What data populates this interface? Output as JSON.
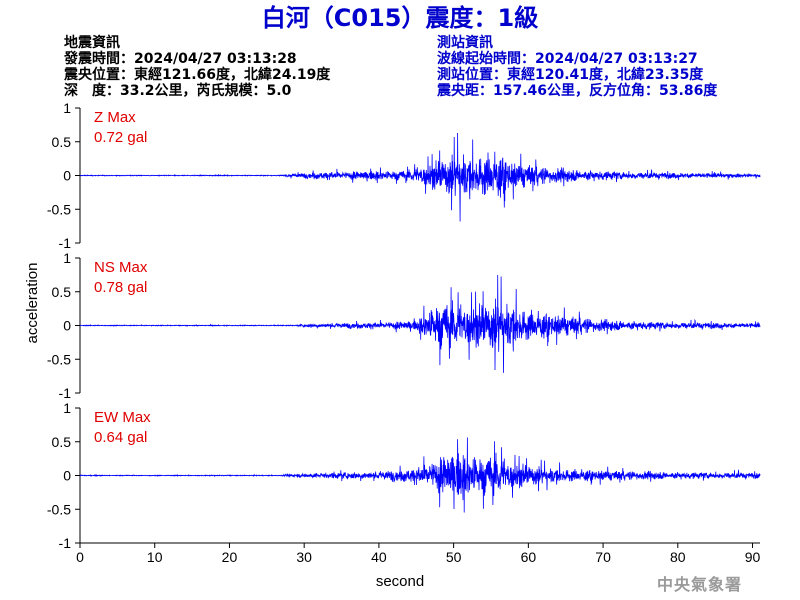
{
  "title": "白河（C015）震度：1級",
  "event_info": {
    "heading": "地震資訊",
    "origin_time": "發震時間：2024/04/27 03:13:28",
    "epicenter": "震央位置：東經121.66度，北緯24.19度",
    "depth_magnitude": "深　度：33.2公里，芮氏規模：5.0"
  },
  "station_info": {
    "heading": "測站資訊",
    "wave_start": "波線起始時間：2024/04/27 03:13:27",
    "station_location": "測站位置：東經120.41度，北緯23.35度",
    "distance_azimuth": "震央距：157.46公里，反方位角：53.86度"
  },
  "agency": "中央氣象署",
  "colors": {
    "title": "#0000cc",
    "trace": "#0000ff",
    "max_label": "#e00000",
    "station_info": "#0000cc"
  },
  "chart_data": {
    "type": "line",
    "xlabel": "second",
    "ylabel": "acceleration",
    "xlim": [
      0,
      91
    ],
    "xticks": [
      "0",
      "10",
      "20",
      "30",
      "40",
      "50",
      "60",
      "70",
      "80",
      "90"
    ],
    "ylim": [
      -1,
      1
    ],
    "yticks": [
      "-1",
      "-0.5",
      "0",
      "0.5",
      "1"
    ],
    "grid": false,
    "series": [
      {
        "name": "Z Max",
        "max": "0.72 gal",
        "peak": 0.72,
        "onset": 27.5,
        "envelope": [
          [
            0,
            0.01
          ],
          [
            27,
            0.01
          ],
          [
            28,
            0.04
          ],
          [
            32,
            0.09
          ],
          [
            38,
            0.11
          ],
          [
            44,
            0.13
          ],
          [
            47,
            0.35
          ],
          [
            50,
            0.55
          ],
          [
            51,
            0.68
          ],
          [
            52,
            0.5
          ],
          [
            54,
            0.55
          ],
          [
            56,
            0.6
          ],
          [
            58,
            0.35
          ],
          [
            62,
            0.22
          ],
          [
            66,
            0.16
          ],
          [
            70,
            0.12
          ],
          [
            76,
            0.08
          ],
          [
            82,
            0.07
          ],
          [
            91,
            0.05
          ]
        ]
      },
      {
        "name": "NS Max",
        "max": "0.78 gal",
        "peak": 0.78,
        "onset": 29.5,
        "envelope": [
          [
            0,
            0.01
          ],
          [
            29,
            0.01
          ],
          [
            30,
            0.04
          ],
          [
            36,
            0.07
          ],
          [
            40,
            0.08
          ],
          [
            45,
            0.12
          ],
          [
            47,
            0.45
          ],
          [
            48,
            0.6
          ],
          [
            50,
            0.55
          ],
          [
            52,
            0.55
          ],
          [
            55,
            0.6
          ],
          [
            56,
            0.75
          ],
          [
            58,
            0.55
          ],
          [
            60,
            0.4
          ],
          [
            64,
            0.28
          ],
          [
            70,
            0.15
          ],
          [
            76,
            0.1
          ],
          [
            82,
            0.08
          ],
          [
            91,
            0.06
          ]
        ]
      },
      {
        "name": "EW Max",
        "max": "0.64 gal",
        "peak": 0.64,
        "onset": 27.5,
        "envelope": [
          [
            0,
            0.01
          ],
          [
            27,
            0.01
          ],
          [
            28,
            0.04
          ],
          [
            32,
            0.07
          ],
          [
            40,
            0.1
          ],
          [
            45,
            0.2
          ],
          [
            48,
            0.45
          ],
          [
            50,
            0.62
          ],
          [
            52,
            0.55
          ],
          [
            54,
            0.5
          ],
          [
            56,
            0.5
          ],
          [
            58,
            0.35
          ],
          [
            62,
            0.22
          ],
          [
            66,
            0.16
          ],
          [
            72,
            0.12
          ],
          [
            80,
            0.09
          ],
          [
            91,
            0.07
          ]
        ]
      }
    ]
  }
}
